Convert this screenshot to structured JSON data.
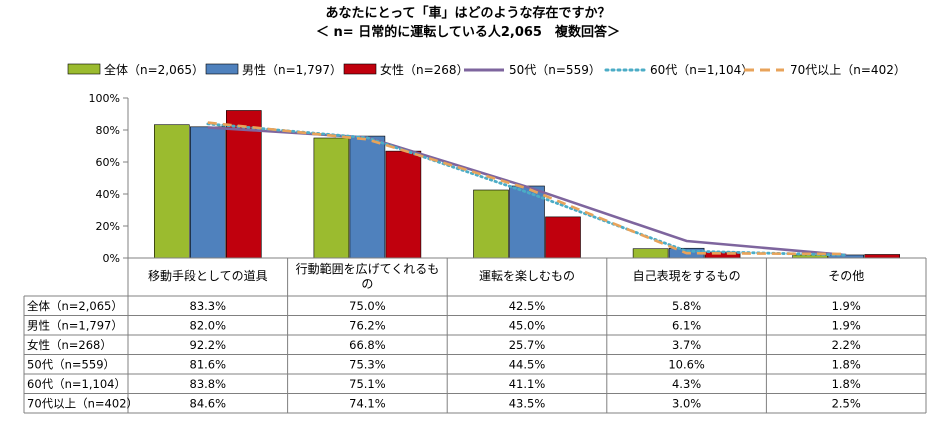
{
  "chart_data": {
    "type": "bar",
    "title": "あなたにとって「車」はどのような存在ですか？",
    "subtitle": "＜ n= 日常的に運転している人2,065　複数回答＞",
    "categories": [
      "移動手段としての道具",
      "行動範囲を広げてくれるもの",
      "運転を楽しむもの",
      "自己表現をするもの",
      "その他"
    ],
    "category_lines": [
      [
        "移動手段としての道具"
      ],
      [
        "行動範囲を広げてくれるも",
        "の"
      ],
      [
        "運転を楽しむもの"
      ],
      [
        "自己表現をするもの"
      ],
      [
        "その他"
      ]
    ],
    "ylim": [
      0,
      100
    ],
    "yticks": [
      0,
      20,
      40,
      60,
      80,
      100
    ],
    "ytick_labels": [
      "0%",
      "20%",
      "40%",
      "60%",
      "80%",
      "100%"
    ],
    "legend_position": "top",
    "grid": false,
    "series": [
      {
        "name": "全体（n=2,065）",
        "kind": "bar",
        "color": "#9BBB2F",
        "values": [
          83.3,
          75.0,
          42.5,
          5.8,
          1.9
        ],
        "labels": [
          "83.3%",
          "75.0%",
          "42.5%",
          "5.8%",
          "1.9%"
        ]
      },
      {
        "name": "男性（n=1,797）",
        "kind": "bar",
        "color": "#4F81BD",
        "values": [
          82.0,
          76.2,
          45.0,
          6.1,
          1.9
        ],
        "labels": [
          "82.0%",
          "76.2%",
          "45.0%",
          "6.1%",
          "1.9%"
        ]
      },
      {
        "name": "女性（n=268）",
        "kind": "bar",
        "color": "#C0000D",
        "values": [
          92.2,
          66.8,
          25.7,
          3.7,
          2.2
        ],
        "labels": [
          "92.2%",
          "66.8%",
          "25.7%",
          "3.7%",
          "2.2%"
        ]
      },
      {
        "name": "50代（n=559）",
        "kind": "line",
        "color": "#7E659E",
        "dash": "solid",
        "values": [
          81.6,
          75.3,
          44.5,
          10.6,
          1.8
        ],
        "labels": [
          "81.6%",
          "75.3%",
          "44.5%",
          "10.6%",
          "1.8%"
        ]
      },
      {
        "name": "60代（n=1,104）",
        "kind": "line",
        "color": "#4BACC6",
        "dash": "dotted",
        "values": [
          83.8,
          75.1,
          41.1,
          4.3,
          1.8
        ],
        "labels": [
          "83.8%",
          "75.1%",
          "41.1%",
          "4.3%",
          "1.8%"
        ]
      },
      {
        "name": "70代以上（n=402）",
        "kind": "line",
        "color": "#E8A35A",
        "dash": "dashed",
        "values": [
          84.6,
          74.1,
          43.5,
          3.0,
          2.5
        ],
        "labels": [
          "84.6%",
          "74.1%",
          "43.5%",
          "3.0%",
          "2.5%"
        ]
      }
    ]
  }
}
